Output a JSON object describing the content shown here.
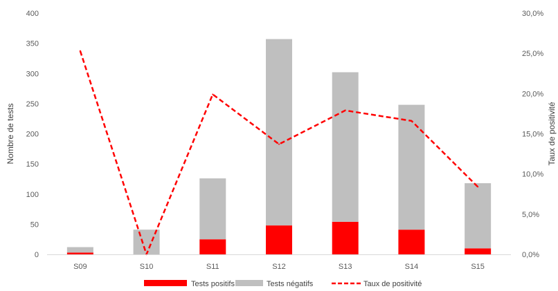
{
  "chart_data": {
    "type": "bar",
    "stacked": true,
    "categories": [
      "S09",
      "S10",
      "S11",
      "S12",
      "S13",
      "S14",
      "S15"
    ],
    "series": [
      {
        "name": "Tests positifs",
        "values": [
          3,
          0,
          25,
          48,
          54,
          41,
          10
        ],
        "color": "#ff0000"
      },
      {
        "name": "Tests négatifs",
        "values": [
          9,
          41,
          101,
          309,
          248,
          207,
          108
        ],
        "color": "#bfbfbf"
      }
    ],
    "line_series": {
      "name": "Taux de positivité",
      "values": [
        25.3,
        0.0,
        19.9,
        13.7,
        17.9,
        16.6,
        8.4
      ],
      "color": "#ff0000",
      "axis": "secondary"
    },
    "ylabel": "Nombre de tests",
    "ylabel_secondary": "Taux de positivité",
    "ylim": [
      0,
      400
    ],
    "ylim_secondary": [
      0,
      30
    ],
    "yticks": [
      "0",
      "50",
      "100",
      "150",
      "200",
      "250",
      "300",
      "350",
      "400"
    ],
    "yticks_secondary": [
      "0,0%",
      "5,0%",
      "10,0%",
      "15,0%",
      "20,0%",
      "25,0%",
      "30,0%"
    ],
    "grid": "none",
    "legend_position": "bottom"
  }
}
